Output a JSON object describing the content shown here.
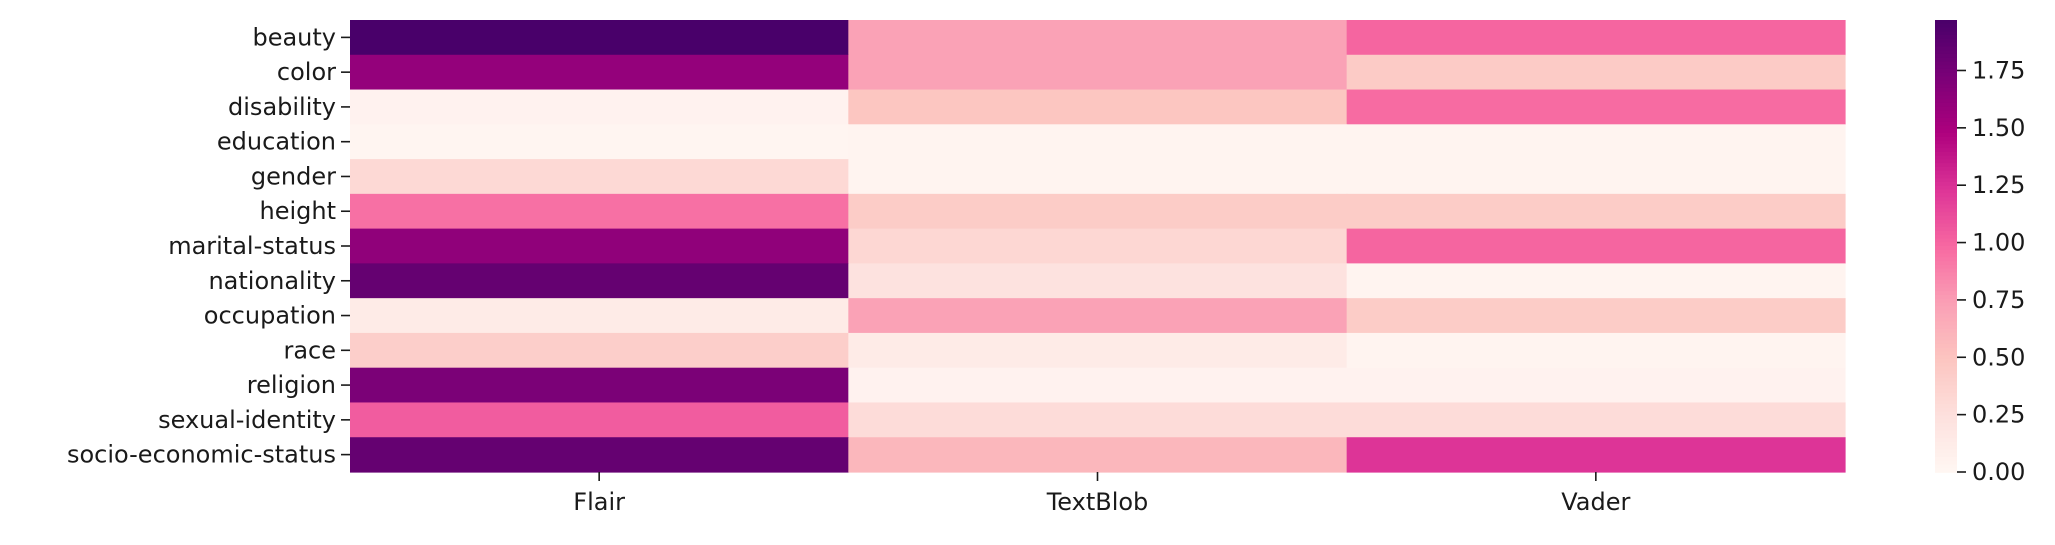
{
  "chart_data": {
    "type": "heatmap",
    "title": "",
    "xlabel": "",
    "ylabel": "",
    "rows": [
      "beauty",
      "color",
      "disability",
      "education",
      "gender",
      "height",
      "marital-status",
      "nationality",
      "occupation",
      "race",
      "religion",
      "sexual-identity",
      "socio-economic-status"
    ],
    "columns": [
      "Flair",
      "TextBlob",
      "Vader"
    ],
    "values": [
      [
        1.97,
        0.72,
        1.0
      ],
      [
        1.6,
        0.72,
        0.44
      ],
      [
        0.05,
        0.48,
        0.97
      ],
      [
        0.02,
        0.03,
        0.03
      ],
      [
        0.31,
        0.03,
        0.03
      ],
      [
        0.95,
        0.43,
        0.43
      ],
      [
        1.62,
        0.33,
        1.0
      ],
      [
        1.83,
        0.22,
        0.03
      ],
      [
        0.13,
        0.72,
        0.43
      ],
      [
        0.41,
        0.13,
        0.03
      ],
      [
        1.72,
        0.05,
        0.05
      ],
      [
        1.04,
        0.28,
        0.28
      ],
      [
        1.83,
        0.58,
        1.23
      ]
    ],
    "colorbar": {
      "range": [
        0,
        1.97
      ],
      "ticks": [
        "0.00",
        "0.25",
        "0.50",
        "0.75",
        "1.00",
        "1.25",
        "1.50",
        "1.75"
      ],
      "colormap": "RdPu",
      "colormap_stops": [
        "#fff7f3",
        "#fde0dd",
        "#fcc5c0",
        "#fa9fb5",
        "#f768a1",
        "#dd3497",
        "#ae017e",
        "#7a0177",
        "#49006a"
      ]
    },
    "grid": false,
    "legend": "colorbar-right"
  }
}
